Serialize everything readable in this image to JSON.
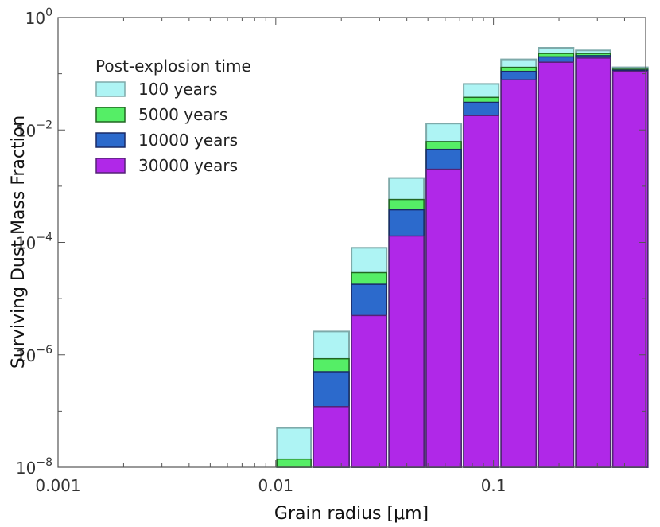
{
  "chart_data": {
    "type": "bar",
    "xscale": "log",
    "yscale": "log",
    "xlabel": "Grain radius [μm]",
    "ylabel": "Surviving Dust Mass Fraction",
    "xlim": [
      0.001,
      0.5
    ],
    "ylim": [
      1e-08,
      1
    ],
    "x_ticks": [
      {
        "value": 0.001,
        "label": "0.001"
      },
      {
        "value": 0.01,
        "label": "0.01"
      },
      {
        "value": 0.1,
        "label": "0.1"
      }
    ],
    "y_ticks": [
      {
        "value": 1e-08,
        "base": "10",
        "exp": "−8"
      },
      {
        "value": 1e-06,
        "base": "10",
        "exp": "−6"
      },
      {
        "value": 0.0001,
        "base": "10",
        "exp": "−4"
      },
      {
        "value": 0.01,
        "base": "10",
        "exp": "−2"
      },
      {
        "value": 1,
        "base": "10",
        "exp": "0"
      }
    ],
    "bin_edges": [
      0.01,
      0.0147,
      0.022,
      0.0327,
      0.0485,
      0.072,
      0.107,
      0.159,
      0.236,
      0.349,
      0.518
    ],
    "legend_title": "Post-explosion time",
    "series": [
      {
        "name": "100 years",
        "fill": "#aef4f4",
        "stroke": "#7eaaaa",
        "values": [
          5e-08,
          2.6e-06,
          8e-05,
          0.0014,
          0.013,
          0.066,
          0.18,
          0.29,
          0.26,
          0.13
        ]
      },
      {
        "name": "5000 years",
        "fill": "#55ee66",
        "stroke": "#226622",
        "values": [
          1.4e-08,
          8.5e-07,
          2.9e-05,
          0.00058,
          0.0062,
          0.038,
          0.13,
          0.23,
          0.23,
          0.12
        ]
      },
      {
        "name": "10000 years",
        "fill": "#2c6acc",
        "stroke": "#1a2a66",
        "values": [
          null,
          5e-07,
          1.8e-05,
          0.00038,
          0.0045,
          0.031,
          0.11,
          0.2,
          0.21,
          0.115
        ]
      },
      {
        "name": "30000 years",
        "fill": "#b028e8",
        "stroke": "#552277",
        "values": [
          null,
          1.2e-07,
          5e-06,
          0.00013,
          0.002,
          0.018,
          0.078,
          0.16,
          0.19,
          0.11
        ]
      }
    ]
  }
}
